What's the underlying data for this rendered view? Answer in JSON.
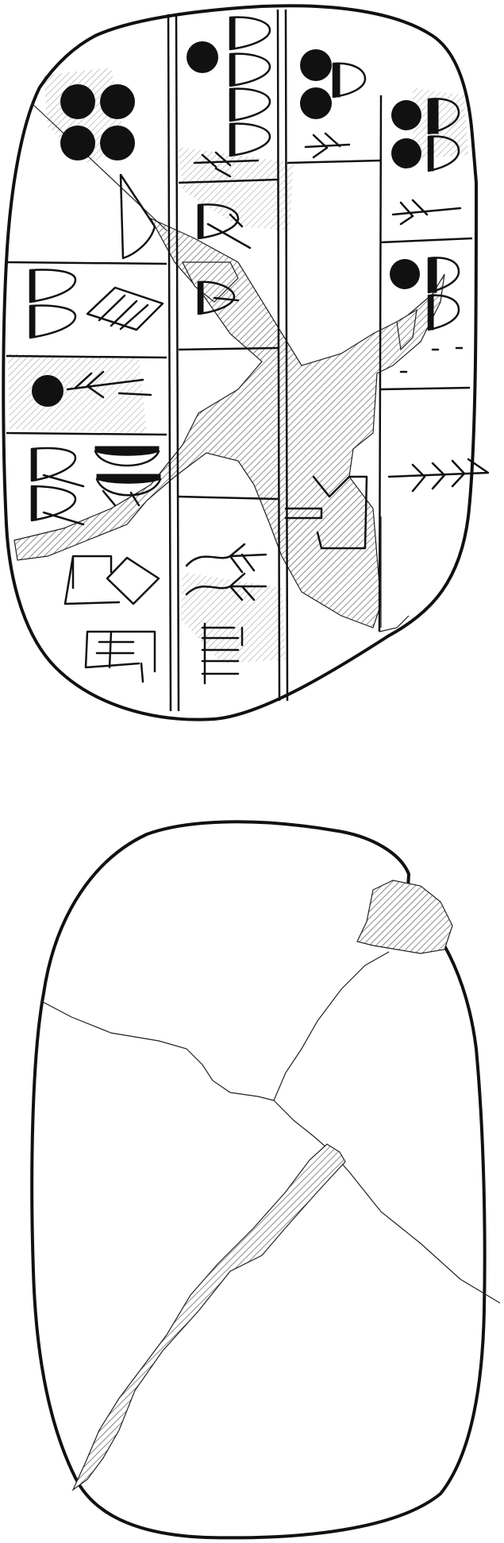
{
  "colors": {
    "background": "#ffffff",
    "ink": "#111111",
    "hatch": "#555555"
  },
  "icons": {
    "numeral": "circle-impression",
    "sign": "wedge-impression",
    "damage": "hatched-area"
  }
}
